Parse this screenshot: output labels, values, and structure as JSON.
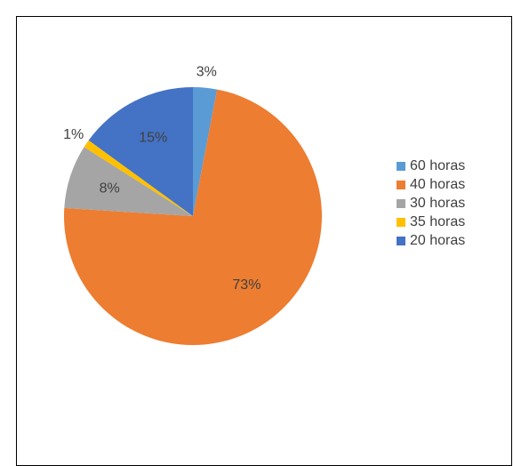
{
  "chart_data": {
    "type": "pie",
    "categories": [
      "60 horas",
      "40 horas",
      "30 horas",
      "35 horas",
      "20 horas"
    ],
    "values": [
      3,
      73,
      8,
      1,
      15
    ],
    "value_labels": [
      "3%",
      "73%",
      "8%",
      "1%",
      "15%"
    ],
    "colors": [
      "#5b9bd5",
      "#ed7d31",
      "#a5a5a5",
      "#ffc000",
      "#4472c4"
    ],
    "legend": "right"
  }
}
